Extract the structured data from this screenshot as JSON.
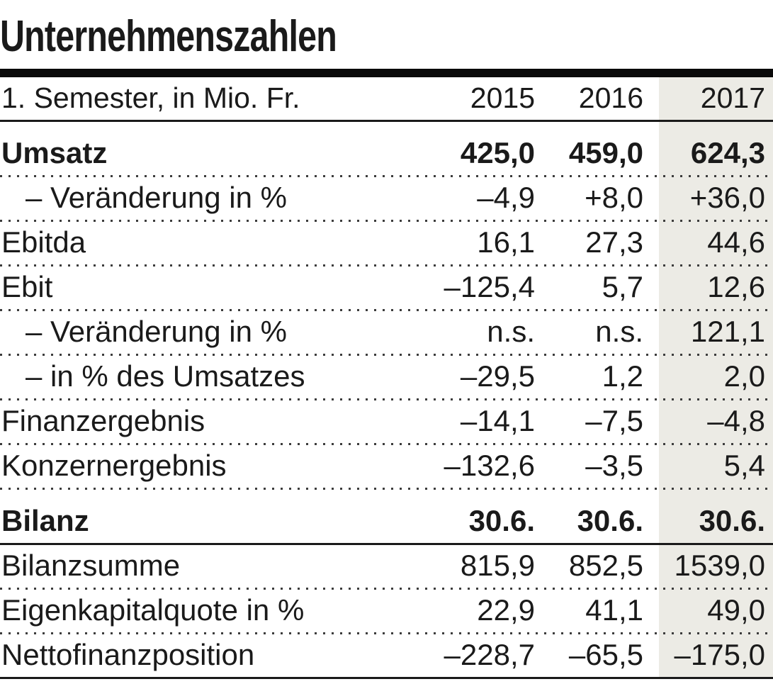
{
  "chart_data": {
    "type": "table",
    "title": "Unternehmenszahlen",
    "subtitle_left": "1. Semester, in Mio. Fr.",
    "columns": [
      "2015",
      "2016",
      "2017"
    ],
    "highlight_column": "2017",
    "rows": [
      {
        "label": "Umsatz",
        "values": [
          "425,0",
          "459,0",
          "624,3"
        ],
        "style": "section-bold"
      },
      {
        "label": "– Veränderung in %",
        "values": [
          "–4,9",
          "+8,0",
          "+36,0"
        ],
        "style": "indent"
      },
      {
        "label": "Ebitda",
        "values": [
          "16,1",
          "27,3",
          "44,6"
        ],
        "style": "normal"
      },
      {
        "label": "Ebit",
        "values": [
          "–125,4",
          "5,7",
          "12,6"
        ],
        "style": "normal"
      },
      {
        "label": "– Veränderung in %",
        "values": [
          "n.s.",
          "n.s.",
          "121,1"
        ],
        "style": "indent"
      },
      {
        "label": "– in % des Umsatzes",
        "values": [
          "–29,5",
          "1,2",
          "2,0"
        ],
        "style": "indent"
      },
      {
        "label": "Finanzergebnis",
        "values": [
          "–14,1",
          "–7,5",
          "–4,8"
        ],
        "style": "normal"
      },
      {
        "label": "Konzernergebnis",
        "values": [
          "–132,6",
          "–3,5",
          "5,4"
        ],
        "style": "normal"
      },
      {
        "label": "Bilanz",
        "values": [
          "30.6.",
          "30.6.",
          "30.6."
        ],
        "style": "section-bold"
      },
      {
        "label": "Bilanzsumme",
        "values": [
          "815,9",
          "852,5",
          "1539,0"
        ],
        "style": "normal"
      },
      {
        "label": "Eigenkapitalquote in %",
        "values": [
          "22,9",
          "41,1",
          "49,0"
        ],
        "style": "normal"
      },
      {
        "label": "Nettofinanzposition",
        "values": [
          "–228,7",
          "–65,5",
          "–175,0"
        ],
        "style": "normal"
      }
    ],
    "layout": {
      "grid": "dotted-row-separators",
      "legend": "none"
    }
  },
  "colors": {
    "highlight_bg": "#ECEBE5",
    "text": "#1a1a1a",
    "rule": "#0a0a0a",
    "dot": "#3c3c3c"
  }
}
